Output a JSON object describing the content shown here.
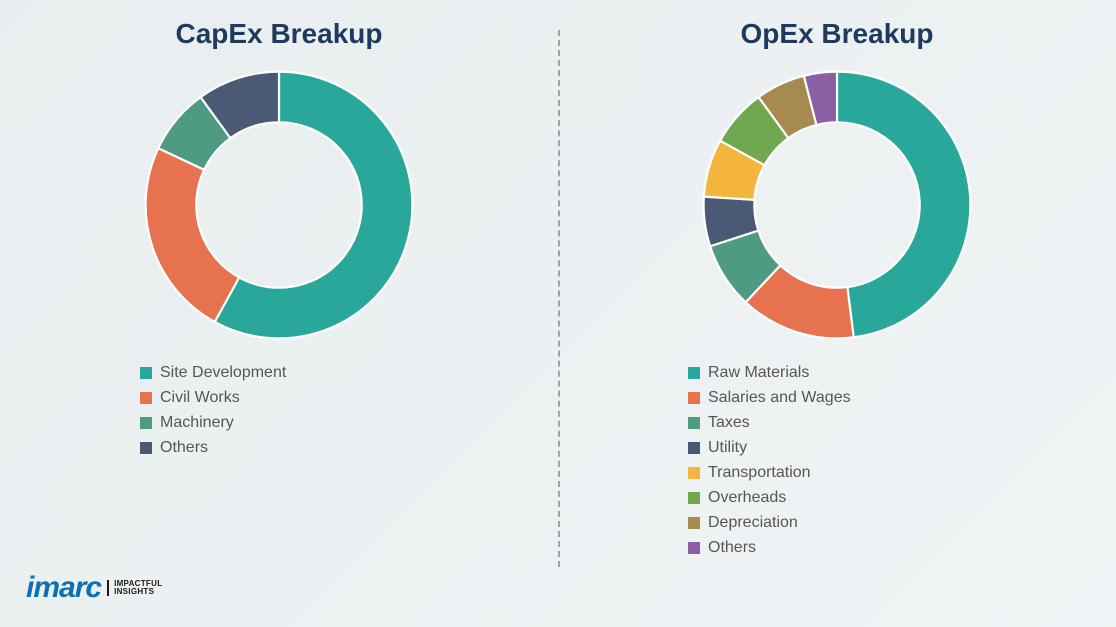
{
  "background_color": "#f5f7f8",
  "divider_color": "#9aa5ab",
  "capex": {
    "title": "CapEx Breakup",
    "title_color": "#1e3a5f",
    "title_fontsize": 28,
    "type": "donut",
    "inner_radius_pct": 62,
    "stroke_color": "#ffffff",
    "stroke_width": 1.5,
    "segments": [
      {
        "label": "Site Development",
        "value": 58,
        "color": "#2aa79b"
      },
      {
        "label": "Civil Works",
        "value": 24,
        "color": "#e7724f"
      },
      {
        "label": "Machinery",
        "value": 8,
        "color": "#4f9a82"
      },
      {
        "label": "Others",
        "value": 10,
        "color": "#4a5a75"
      }
    ],
    "legend_fontsize": 16,
    "legend_color": "#565656"
  },
  "opex": {
    "title": "OpEx Breakup",
    "title_color": "#1e3a5f",
    "title_fontsize": 28,
    "type": "donut",
    "inner_radius_pct": 62,
    "stroke_color": "#ffffff",
    "stroke_width": 1.5,
    "segments": [
      {
        "label": "Raw Materials",
        "value": 48,
        "color": "#2aa79b"
      },
      {
        "label": "Salaries and Wages",
        "value": 14,
        "color": "#e7724f"
      },
      {
        "label": "Taxes",
        "value": 8,
        "color": "#4f9a82"
      },
      {
        "label": "Utility",
        "value": 6,
        "color": "#4a5a75"
      },
      {
        "label": "Transportation",
        "value": 7,
        "color": "#f2b63d"
      },
      {
        "label": "Overheads",
        "value": 7,
        "color": "#6fa84f"
      },
      {
        "label": "Depreciation",
        "value": 6,
        "color": "#a68a4f"
      },
      {
        "label": "Others",
        "value": 4,
        "color": "#8a5fa3"
      }
    ],
    "legend_fontsize": 16,
    "legend_color": "#565656"
  },
  "logo": {
    "mark": "imarc",
    "tagline_line1": "IMPACTFUL",
    "tagline_line2": "INSIGHTS",
    "mark_color": "#0f6fb5"
  }
}
